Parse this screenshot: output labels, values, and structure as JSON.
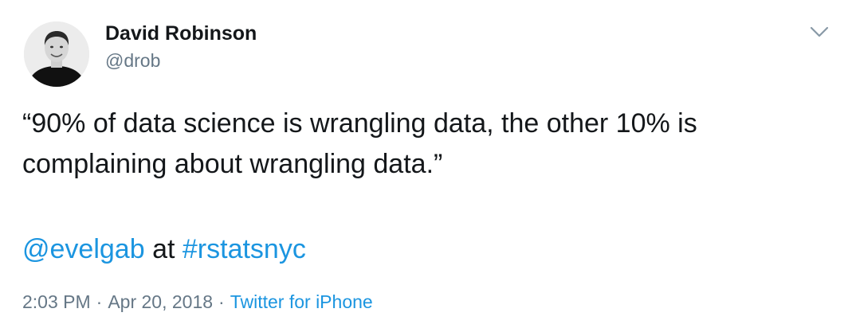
{
  "author": {
    "display_name": "David Robinson",
    "handle": "@drob"
  },
  "tweet": {
    "text_line1": "“90% of data science is wrangling data, the other 10% is",
    "text_line2": "complaining about wrangling data.”",
    "mention": "@evelgab",
    "connector": "at",
    "hashtag": "#rstatsnyc"
  },
  "meta": {
    "time": "2:03 PM",
    "separator": "·",
    "date": "Apr 20, 2018",
    "source": "Twitter for iPhone"
  },
  "icons": {
    "menu": "chevron-down-icon",
    "avatar": "avatar"
  },
  "colors": {
    "link": "#1b95e0",
    "text": "#14171a",
    "secondary": "#657786"
  }
}
